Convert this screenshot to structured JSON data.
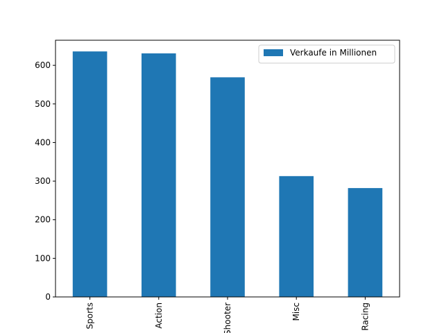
{
  "chart_data": {
    "type": "bar",
    "categories": [
      "Sports",
      "Action",
      "Shooter",
      "Misc",
      "Racing"
    ],
    "series": [
      {
        "name": "Verkaufe in Millionen",
        "values": [
          636,
          631,
          569,
          313,
          282
        ],
        "color": "#1f77b4"
      }
    ],
    "title": "",
    "xlabel": "",
    "ylabel": "",
    "ylim": [
      0,
      665
    ],
    "yticks": [
      0,
      100,
      200,
      300,
      400,
      500,
      600
    ],
    "grid": false,
    "legend_position": "top-right",
    "x_tick_rotation": "vertical"
  }
}
